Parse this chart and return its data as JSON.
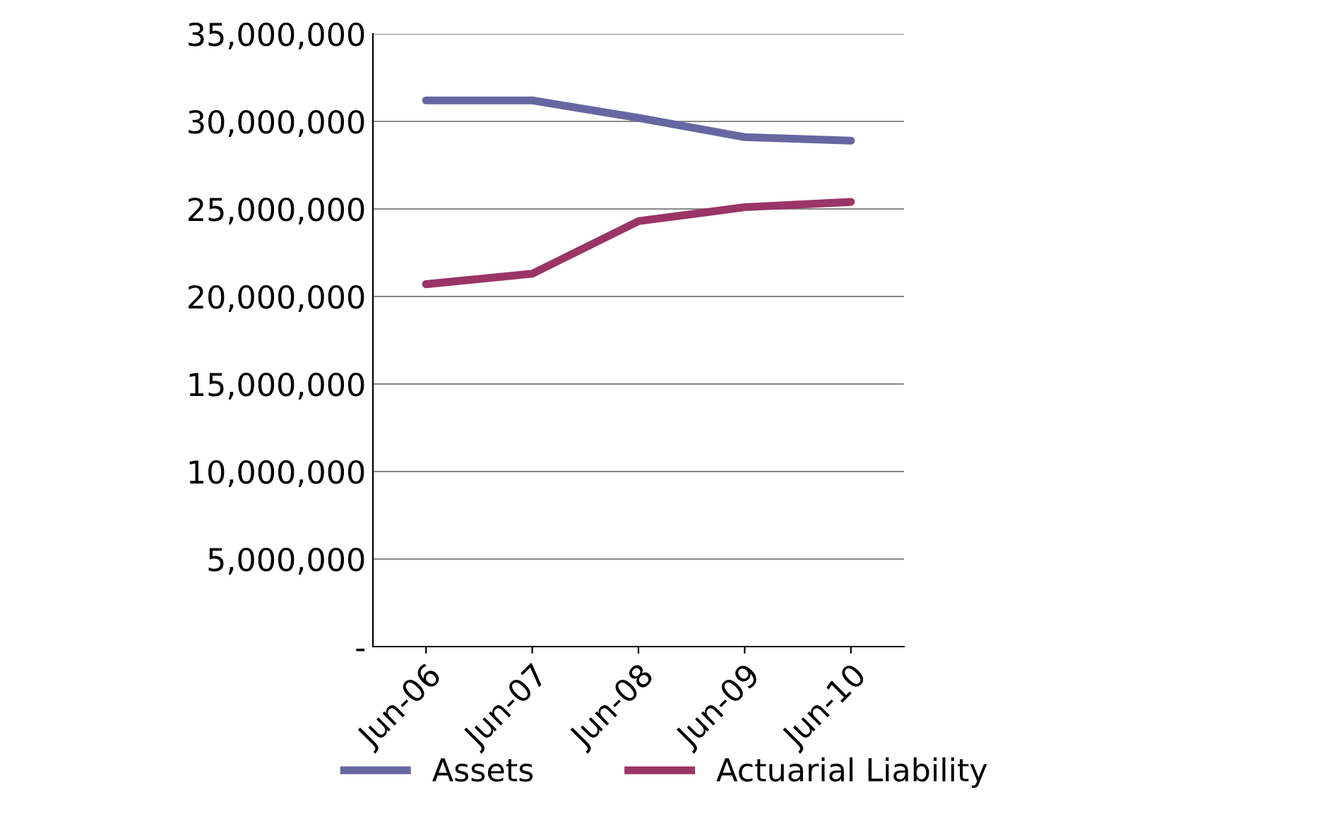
{
  "chart_data": {
    "type": "line",
    "categories": [
      "Jun-06",
      "Jun-07",
      "Jun-08",
      "Jun-09",
      "Jun-10"
    ],
    "series": [
      {
        "name": "Assets",
        "color": "#6667a0",
        "values": [
          31200000,
          31200000,
          30200000,
          29100000,
          28900000
        ]
      },
      {
        "name": "Actuarial Liability",
        "color": "#9a3566",
        "values": [
          20700000,
          21300000,
          24300000,
          25100000,
          25400000
        ]
      }
    ],
    "ylim": [
      0,
      35000000
    ],
    "yticks": [
      {
        "value": 0,
        "label": "-"
      },
      {
        "value": 5000000,
        "label": "5,000,000"
      },
      {
        "value": 10000000,
        "label": "10,000,000"
      },
      {
        "value": 15000000,
        "label": "15,000,000"
      },
      {
        "value": 20000000,
        "label": "20,000,000"
      },
      {
        "value": 25000000,
        "label": "25,000,000"
      },
      {
        "value": 30000000,
        "label": "30,000,000"
      },
      {
        "value": 35000000,
        "label": "35,000,000"
      }
    ],
    "grid": "y",
    "legend": "bottom",
    "marker": "none",
    "line_style": "solid"
  }
}
